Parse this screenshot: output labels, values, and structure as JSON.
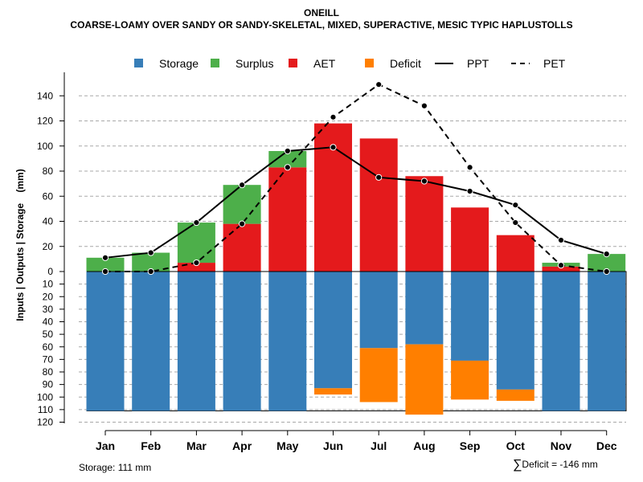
{
  "chart_data": {
    "type": "bar",
    "title": "ONEILL",
    "subtitle": "COARSE-LOAMY OVER SANDY OR SANDY-SKELETAL, MIXED, SUPERACTIVE, MESIC TYPIC HAPLUSTOLLS",
    "ylabel": "Inputs | Outputs | Storage    (mm)",
    "xlabel": "",
    "legend": {
      "position": "top",
      "items": [
        {
          "label": "Storage",
          "kind": "box",
          "color": "#377eb8"
        },
        {
          "label": "Surplus",
          "kind": "box",
          "color": "#4daf4a"
        },
        {
          "label": "AET",
          "kind": "box",
          "color": "#e41a1c"
        },
        {
          "label": "Deficit",
          "kind": "box",
          "color": "#ff7f00"
        },
        {
          "label": "PPT",
          "kind": "solid"
        },
        {
          "label": "PET",
          "kind": "dashed"
        }
      ]
    },
    "categories": [
      "Jan",
      "Feb",
      "Mar",
      "Apr",
      "May",
      "Jun",
      "Jul",
      "Aug",
      "Sep",
      "Oct",
      "Nov",
      "Dec"
    ],
    "upper_ticks": [
      0,
      20,
      40,
      60,
      80,
      100,
      120,
      140
    ],
    "lower_ticks": [
      0,
      10,
      20,
      30,
      40,
      50,
      60,
      70,
      80,
      90,
      100,
      110,
      120
    ],
    "upper_ylim": [
      0,
      150
    ],
    "lower_ylim": [
      0,
      120
    ],
    "storage_capacity": 111,
    "series": [
      {
        "name": "AET",
        "values": [
          0,
          0,
          7,
          38,
          83,
          118,
          106,
          76,
          51,
          29,
          4,
          0
        ]
      },
      {
        "name": "Surplus",
        "values": [
          11,
          15,
          32,
          31,
          13,
          0,
          0,
          0,
          0,
          0,
          3,
          14
        ]
      },
      {
        "name": "Storage",
        "values": [
          111,
          111,
          111,
          111,
          111,
          93,
          61,
          58,
          71,
          94,
          111,
          111
        ]
      },
      {
        "name": "Deficit",
        "values": [
          0,
          0,
          0,
          0,
          0,
          5,
          43,
          56,
          31,
          9,
          0,
          0
        ]
      },
      {
        "name": "PPT",
        "values": [
          11,
          15,
          39,
          69,
          96,
          99,
          75,
          72,
          64,
          53,
          25,
          14
        ]
      },
      {
        "name": "PET",
        "values": [
          0,
          0,
          7,
          38,
          83,
          123,
          149,
          132,
          83,
          39,
          5,
          0
        ]
      }
    ],
    "colors": {
      "storage": "#377eb8",
      "surplus": "#4daf4a",
      "aet": "#e41a1c",
      "deficit": "#ff7f00",
      "line": "#000000",
      "grid": "#a8a8a8"
    }
  },
  "footer": {
    "storage_note": "Storage: 111 mm",
    "deficit_symbol": "∑",
    "deficit_note": "Deficit = -146 mm"
  }
}
